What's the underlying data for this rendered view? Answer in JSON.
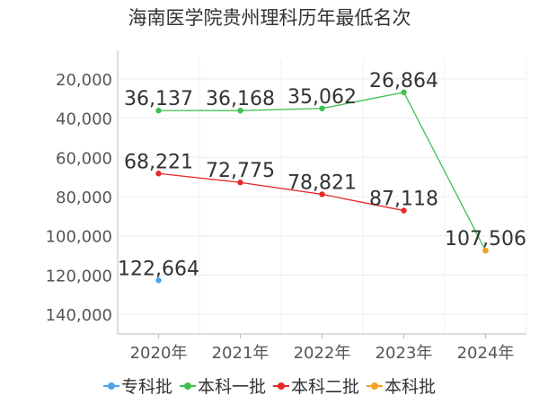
{
  "chart_data": {
    "type": "line",
    "title": "海南医学院贵州理科历年最低名次",
    "categories": [
      "2020年",
      "2021年",
      "2022年",
      "2023年",
      "2024年"
    ],
    "y_ticks": [
      "20,000",
      "40,000",
      "60,000",
      "80,000",
      "100,000",
      "120,000",
      "140,000"
    ],
    "y_tick_values": [
      20000,
      40000,
      60000,
      80000,
      100000,
      120000,
      140000
    ],
    "ylim": [
      10000,
      150000
    ],
    "y_inverted": true,
    "grid": true,
    "legend_position": "bottom",
    "series": [
      {
        "name": "专科批",
        "color": "#4fa3e8",
        "values": [
          122664,
          null,
          null,
          null,
          null
        ],
        "labels": [
          "122,664",
          null,
          null,
          null,
          null
        ]
      },
      {
        "name": "本科一批",
        "color": "#3ec150",
        "values": [
          36137,
          36168,
          35062,
          26864,
          107506
        ],
        "labels": [
          "36,137",
          "36,168",
          "35,062",
          "26,864",
          null
        ]
      },
      {
        "name": "本科二批",
        "color": "#e8282b",
        "values": [
          68221,
          72775,
          78821,
          87118,
          null
        ],
        "labels": [
          "68,221",
          "72,775",
          "78,821",
          "87,118",
          null
        ]
      },
      {
        "name": "本科批",
        "color": "#f5a024",
        "values": [
          null,
          null,
          null,
          null,
          107506
        ],
        "labels": [
          null,
          null,
          null,
          null,
          "107,506"
        ]
      }
    ]
  }
}
